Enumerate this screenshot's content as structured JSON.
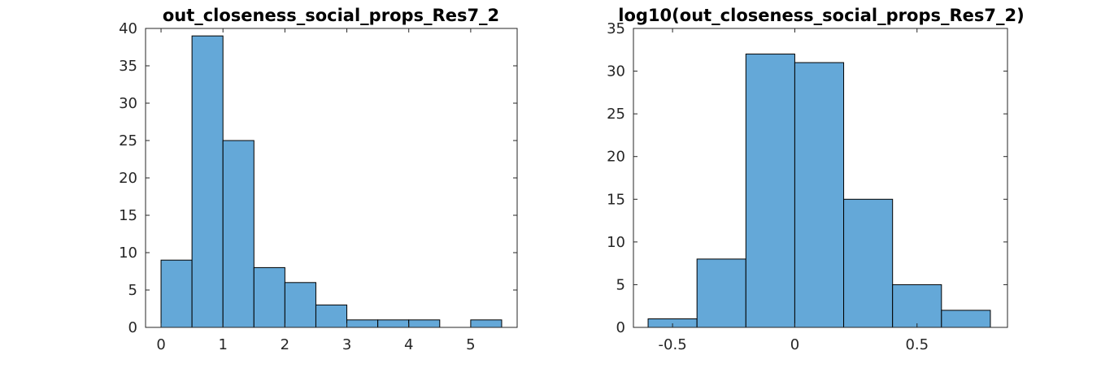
{
  "chart_data": [
    {
      "type": "bar",
      "title": "out_closeness_social_props_Res7_2",
      "xlabel": "",
      "ylabel": "",
      "bin_edges": [
        0,
        0.5,
        1,
        1.5,
        2,
        2.5,
        3,
        3.5,
        4,
        4.5,
        5,
        5.5
      ],
      "values": [
        9,
        39,
        25,
        8,
        6,
        3,
        1,
        1,
        1,
        0,
        1
      ],
      "xlim": [
        -0.25,
        5.75
      ],
      "ylim": [
        0,
        40
      ],
      "xticks": [
        0,
        1,
        2,
        3,
        4,
        5
      ],
      "xtick_labels": [
        "0",
        "1",
        "2",
        "3",
        "4",
        "5"
      ],
      "yticks": [
        0,
        5,
        10,
        15,
        20,
        25,
        30,
        35,
        40
      ],
      "ytick_labels": [
        "0",
        "5",
        "10",
        "15",
        "20",
        "25",
        "30",
        "35",
        "40"
      ],
      "color": "#64a8d8",
      "grid": false
    },
    {
      "type": "bar",
      "title": "log10(out_closeness_social_props_Res7_2)",
      "xlabel": "",
      "ylabel": "",
      "bin_edges": [
        -0.6,
        -0.4,
        -0.2,
        0,
        0.2,
        0.4,
        0.6,
        0.8
      ],
      "values": [
        1,
        8,
        32,
        31,
        15,
        5,
        2
      ],
      "xlim": [
        -0.66,
        0.87
      ],
      "ylim": [
        0,
        35
      ],
      "xticks": [
        -0.5,
        0,
        0.5
      ],
      "xtick_labels": [
        "-0.5",
        "0",
        "0.5"
      ],
      "yticks": [
        0,
        5,
        10,
        15,
        20,
        25,
        30,
        35
      ],
      "ytick_labels": [
        "0",
        "5",
        "10",
        "15",
        "20",
        "25",
        "30",
        "35"
      ],
      "color": "#64a8d8",
      "grid": false
    }
  ]
}
